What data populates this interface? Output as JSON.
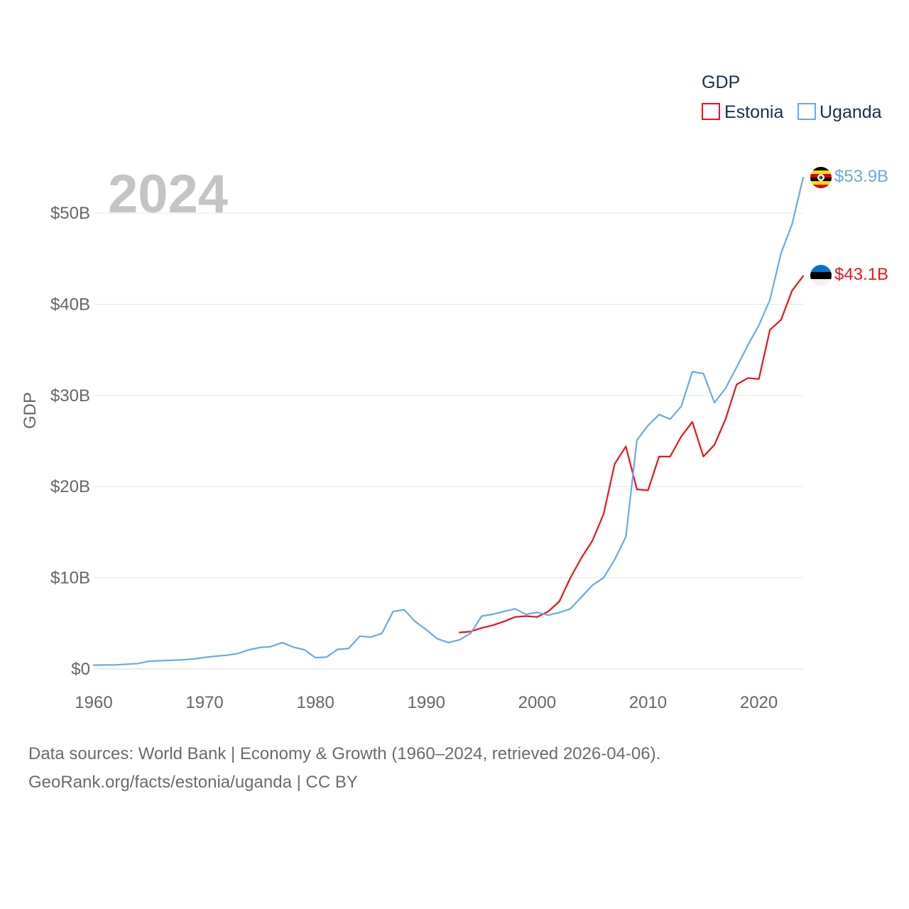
{
  "chart_data": {
    "type": "line",
    "year_watermark": "2024",
    "ylabel": "GDP",
    "xlabel": "",
    "xlim": [
      1960,
      2024
    ],
    "ylim": [
      0,
      55
    ],
    "x_ticks": [
      1960,
      1970,
      1980,
      1990,
      2000,
      2010,
      2020
    ],
    "x_tick_labels": [
      "1960",
      "1970",
      "1980",
      "1990",
      "2000",
      "2010",
      "2020"
    ],
    "y_ticks": [
      0,
      10,
      20,
      30,
      40,
      50
    ],
    "y_tick_labels": [
      "$0",
      "$10B",
      "$20B",
      "$30B",
      "$40B",
      "$50B"
    ],
    "grid": true,
    "legend": {
      "title": "GDP",
      "position": "top-right",
      "entries": [
        "Estonia",
        "Uganda"
      ]
    },
    "series": [
      {
        "name": "Estonia",
        "color": "#e8141b",
        "end_label": "$43.1B",
        "flag": "estonia-flag",
        "x": [
          1993,
          1994,
          1995,
          1996,
          1997,
          1998,
          1999,
          2000,
          2001,
          2002,
          2003,
          2004,
          2005,
          2006,
          2007,
          2008,
          2009,
          2010,
          2011,
          2012,
          2013,
          2014,
          2015,
          2016,
          2017,
          2018,
          2019,
          2020,
          2021,
          2022,
          2023,
          2024
        ],
        "values": [
          4.0,
          4.1,
          4.5,
          4.8,
          5.2,
          5.7,
          5.8,
          5.7,
          6.3,
          7.4,
          10.0,
          12.2,
          14.1,
          17.0,
          22.5,
          24.4,
          19.7,
          19.6,
          23.3,
          23.3,
          25.5,
          27.1,
          23.3,
          24.6,
          27.4,
          31.2,
          31.9,
          31.8,
          37.2,
          38.3,
          41.5,
          43.1
        ]
      },
      {
        "name": "Uganda",
        "color": "#6aa9e5",
        "end_label": "$53.9B",
        "flag": "uganda-flag",
        "x": [
          1960,
          1961,
          1962,
          1963,
          1964,
          1965,
          1966,
          1967,
          1968,
          1969,
          1970,
          1971,
          1972,
          1973,
          1974,
          1975,
          1976,
          1977,
          1978,
          1979,
          1980,
          1981,
          1982,
          1983,
          1984,
          1985,
          1986,
          1987,
          1988,
          1989,
          1990,
          1991,
          1992,
          1993,
          1994,
          1995,
          1996,
          1997,
          1998,
          1999,
          2000,
          2001,
          2002,
          2003,
          2004,
          2005,
          2006,
          2007,
          2008,
          2009,
          2010,
          2011,
          2012,
          2013,
          2014,
          2015,
          2016,
          2017,
          2018,
          2019,
          2020,
          2021,
          2022,
          2023,
          2024
        ],
        "values": [
          0.42,
          0.44,
          0.45,
          0.52,
          0.6,
          0.85,
          0.9,
          0.95,
          1.0,
          1.1,
          1.26,
          1.4,
          1.5,
          1.7,
          2.1,
          2.35,
          2.45,
          2.9,
          2.4,
          2.1,
          1.24,
          1.3,
          2.15,
          2.25,
          3.6,
          3.5,
          3.9,
          6.3,
          6.5,
          5.2,
          4.3,
          3.3,
          2.9,
          3.2,
          3.9,
          5.8,
          6.0,
          6.3,
          6.6,
          6.0,
          6.2,
          5.9,
          6.2,
          6.6,
          7.9,
          9.2,
          10.0,
          12.0,
          14.5,
          25.1,
          26.7,
          27.9,
          27.4,
          28.8,
          32.6,
          32.4,
          29.2,
          30.8,
          33.1,
          35.5,
          37.7,
          40.5,
          45.6,
          48.8,
          53.9
        ]
      }
    ]
  },
  "source_lines": [
    "Data sources: World Bank | Economy & Growth (1960–2024, retrieved 2026-04-06).",
    "GeoRank.org/facts/estonia/uganda | CC BY"
  ]
}
